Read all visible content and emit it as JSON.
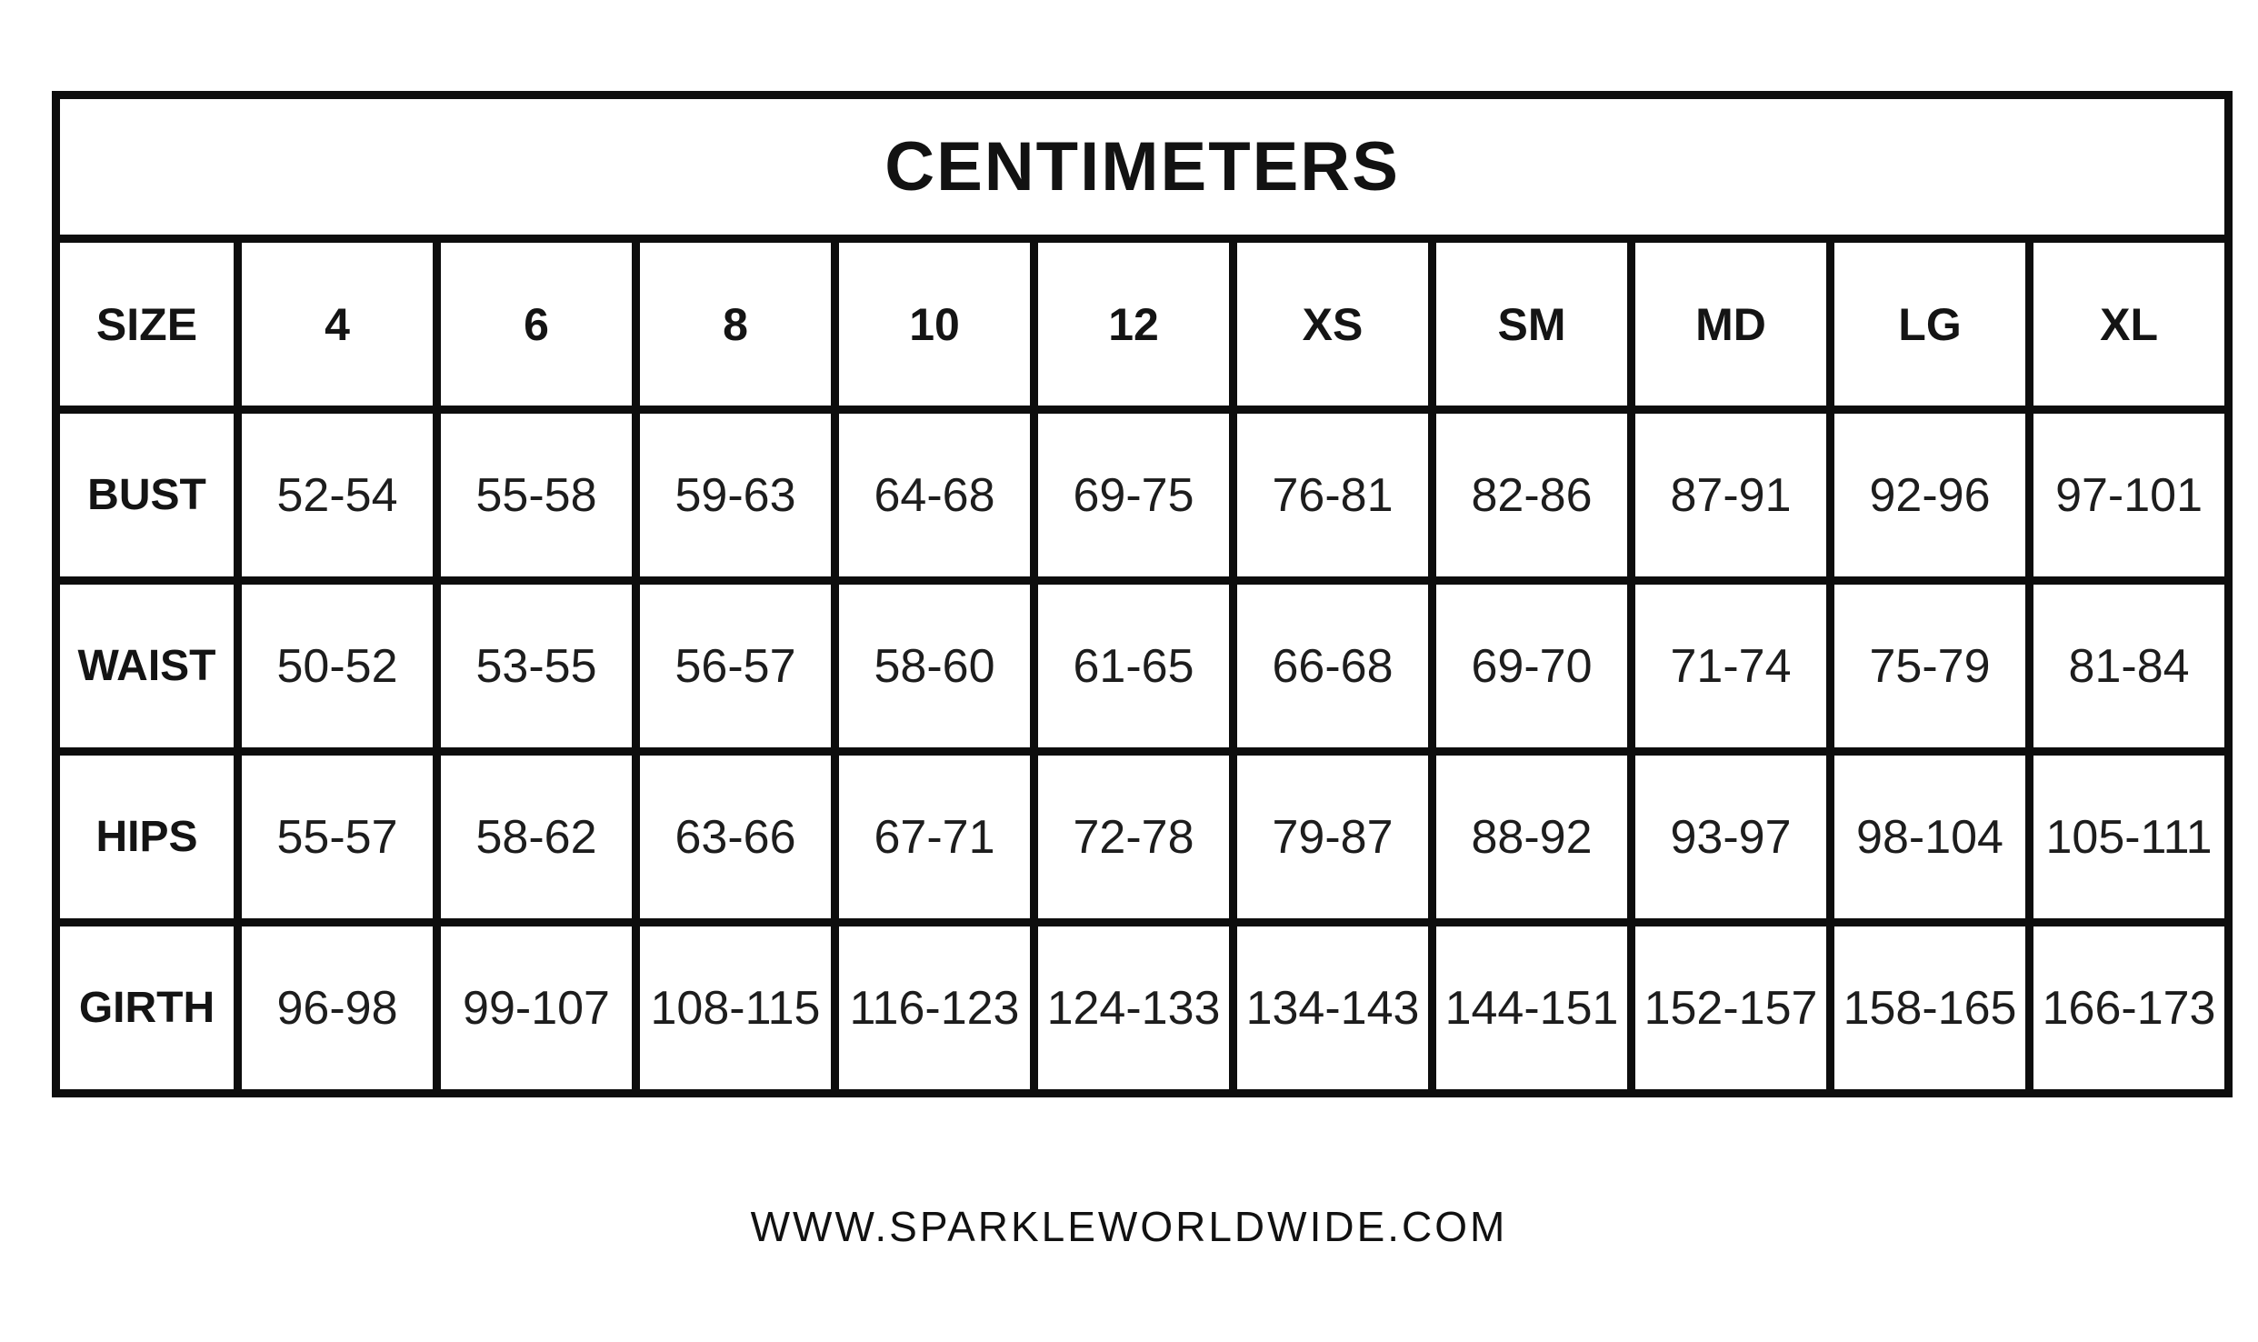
{
  "colors": {
    "background": "#ffffff",
    "border": "#0d0d0d",
    "text": "#171717"
  },
  "chart_data": {
    "type": "table",
    "title": "CENTIMETERS",
    "columns": [
      "SIZE",
      "4",
      "6",
      "8",
      "10",
      "12",
      "XS",
      "SM",
      "MD",
      "LG",
      "XL"
    ],
    "rows": [
      {
        "label": "BUST",
        "values": [
          "52-54",
          "55-58",
          "59-63",
          "64-68",
          "69-75",
          "76-81",
          "82-86",
          "87-91",
          "92-96",
          "97-101"
        ]
      },
      {
        "label": "WAIST",
        "values": [
          "50-52",
          "53-55",
          "56-57",
          "58-60",
          "61-65",
          "66-68",
          "69-70",
          "71-74",
          "75-79",
          "81-84"
        ]
      },
      {
        "label": "HIPS",
        "values": [
          "55-57",
          "58-62",
          "63-66",
          "67-71",
          "72-78",
          "79-87",
          "88-92",
          "93-97",
          "98-104",
          "105-111"
        ]
      },
      {
        "label": "GIRTH",
        "values": [
          "96-98",
          "99-107",
          "108-115",
          "116-123",
          "124-133",
          "134-143",
          "144-151",
          "152-157",
          "158-165",
          "166-173"
        ]
      }
    ],
    "layout": {
      "grid": true,
      "units_label_position": "top",
      "row_header_column": "left"
    }
  },
  "footer": {
    "url": "WWW.SPARKLEWORLDWIDE.COM"
  }
}
